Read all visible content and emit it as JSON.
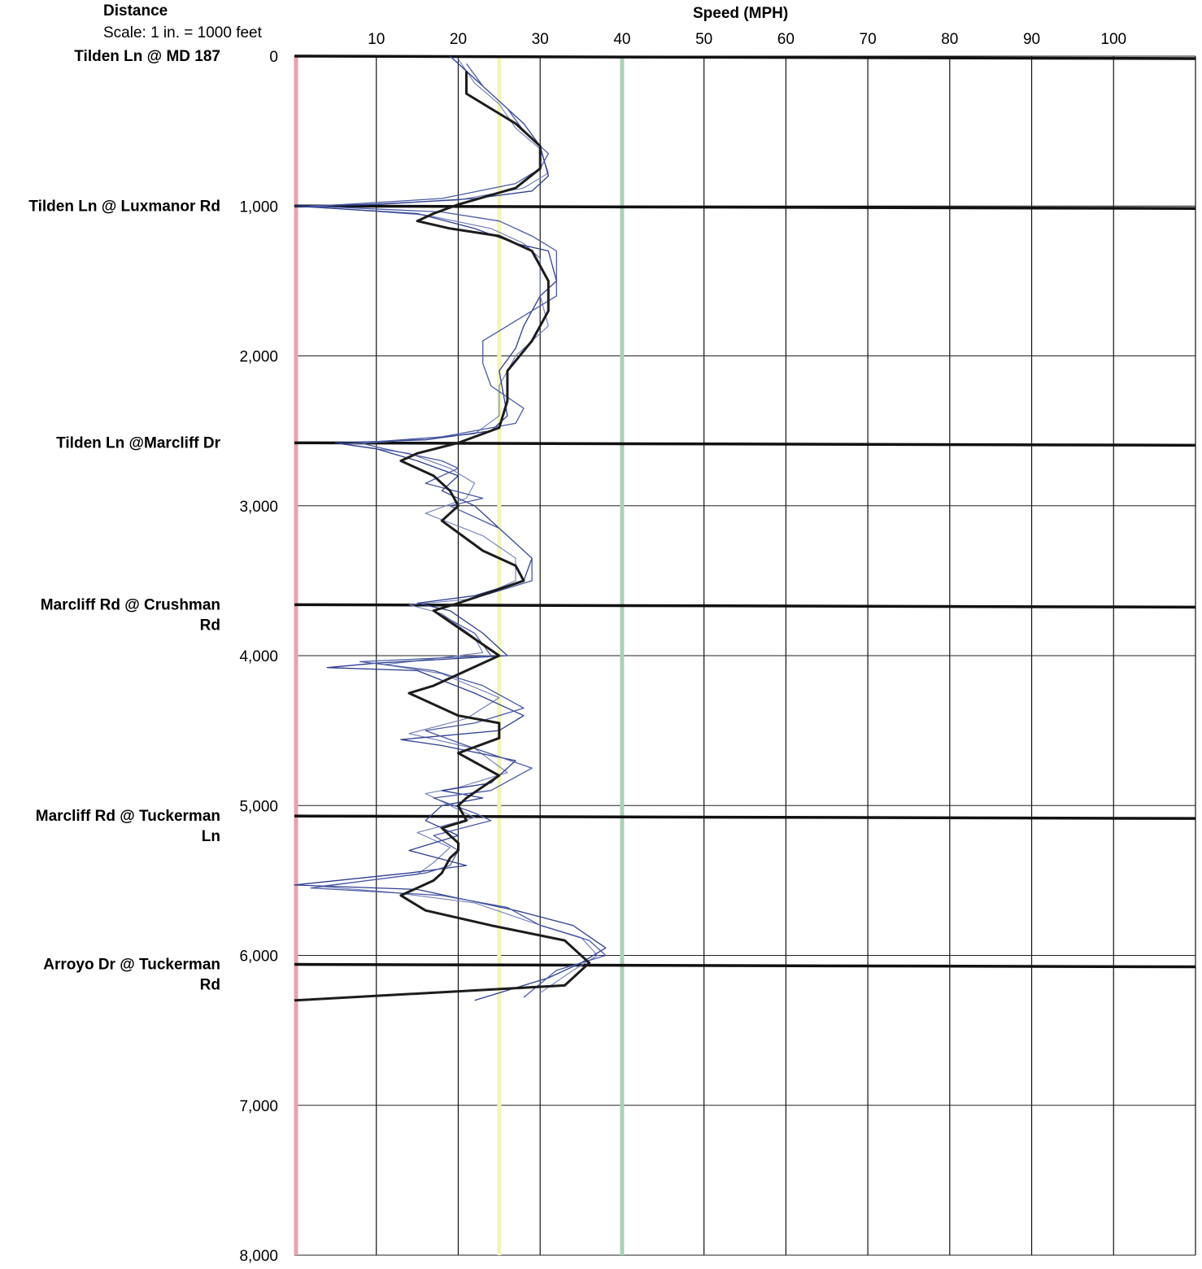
{
  "header": {
    "distance_title": "Distance",
    "scale_note": "Scale: 1 in. = 1000 feet",
    "speed_title": "Speed (MPH)"
  },
  "chart_data": {
    "type": "line",
    "orientation": "vertical",
    "xlabel": "Speed (MPH)",
    "ylabel": "Distance",
    "xlim": [
      0,
      110
    ],
    "ylim": [
      0,
      8000
    ],
    "x_ticks": [
      "10",
      "20",
      "30",
      "40",
      "50",
      "60",
      "70",
      "80",
      "90",
      "100"
    ],
    "y_ticks": [
      "0",
      "1,000",
      "2,000",
      "3,000",
      "4,000",
      "5,000",
      "6,000",
      "7,000",
      "8,000"
    ],
    "reference_lines": [
      {
        "speed": 0,
        "color": "#e8a3ae"
      },
      {
        "speed": 25,
        "color": "#f2f4b8"
      },
      {
        "speed": 40,
        "color": "#a9d2b5"
      }
    ],
    "locations": [
      {
        "name": [
          "Tilden Ln @ MD 187"
        ],
        "distance": 0
      },
      {
        "name": [
          "Tilden Ln @ Luxmanor Rd"
        ],
        "distance": 1000
      },
      {
        "name": [
          "Tilden Ln @Marcliff Dr"
        ],
        "distance": 2580
      },
      {
        "name": [
          "Marcliff Rd @ Crushman",
          "Rd"
        ],
        "distance": 3660
      },
      {
        "name": [
          "Marcliff Rd @ Tuckerman",
          "Ln"
        ],
        "distance": 5070
      },
      {
        "name": [
          "Arroyo Dr @ Tuckerman",
          "Rd"
        ],
        "distance": 6060
      }
    ],
    "series": [
      {
        "color": "#1c1c1c",
        "width": 3,
        "points": [
          [
            21,
            100
          ],
          [
            21,
            250
          ],
          [
            24,
            350
          ],
          [
            27,
            450
          ],
          [
            29,
            550
          ],
          [
            30,
            600
          ],
          [
            30,
            750
          ],
          [
            27,
            880
          ],
          [
            20,
            990
          ],
          [
            17,
            1050
          ],
          [
            15,
            1100
          ],
          [
            19,
            1150
          ],
          [
            25,
            1200
          ],
          [
            29,
            1300
          ],
          [
            31,
            1500
          ],
          [
            31,
            1700
          ],
          [
            29,
            1900
          ],
          [
            26,
            2100
          ],
          [
            26,
            2300
          ],
          [
            25,
            2480
          ],
          [
            20,
            2580
          ],
          [
            15,
            2650
          ],
          [
            13,
            2700
          ],
          [
            17,
            2800
          ],
          [
            19,
            2900
          ],
          [
            20,
            3000
          ],
          [
            18,
            3100
          ],
          [
            23,
            3300
          ],
          [
            27,
            3400
          ],
          [
            28,
            3500
          ],
          [
            20,
            3650
          ],
          [
            17,
            3700
          ],
          [
            21,
            3850
          ],
          [
            25,
            4000
          ],
          [
            17,
            4200
          ],
          [
            14,
            4250
          ],
          [
            20,
            4400
          ],
          [
            25,
            4450
          ],
          [
            25,
            4550
          ],
          [
            20,
            4650
          ],
          [
            25,
            4800
          ],
          [
            21,
            4950
          ],
          [
            20,
            5000
          ],
          [
            21,
            5100
          ],
          [
            18,
            5150
          ],
          [
            20,
            5250
          ],
          [
            20,
            5300
          ],
          [
            19,
            5350
          ],
          [
            18,
            5450
          ],
          [
            17,
            5500
          ],
          [
            13,
            5600
          ],
          [
            16,
            5700
          ],
          [
            24,
            5800
          ],
          [
            33,
            5900
          ],
          [
            36,
            6050
          ],
          [
            33,
            6200
          ],
          [
            0,
            6300
          ]
        ]
      },
      {
        "color": "#2e3f8f",
        "width": 1.3,
        "points": [
          [
            19,
            0
          ],
          [
            22,
            150
          ],
          [
            25,
            300
          ],
          [
            28,
            450
          ],
          [
            30,
            600
          ],
          [
            31,
            800
          ],
          [
            29,
            900
          ],
          [
            22,
            950
          ],
          [
            10,
            990
          ],
          [
            0,
            1000
          ],
          [
            15,
            1050
          ],
          [
            22,
            1150
          ],
          [
            27,
            1250
          ],
          [
            31,
            1300
          ],
          [
            32,
            1500
          ],
          [
            30,
            1600
          ],
          [
            28,
            1800
          ],
          [
            27,
            1950
          ],
          [
            25,
            2100
          ],
          [
            26,
            2400
          ],
          [
            24,
            2500
          ],
          [
            16,
            2560
          ],
          [
            5,
            2580
          ],
          [
            10,
            2620
          ],
          [
            15,
            2700
          ],
          [
            20,
            2800
          ],
          [
            18,
            2900
          ],
          [
            22,
            3000
          ],
          [
            26,
            3200
          ],
          [
            29,
            3350
          ],
          [
            28,
            3500
          ],
          [
            22,
            3600
          ],
          [
            15,
            3650
          ],
          [
            19,
            3700
          ],
          [
            23,
            3850
          ],
          [
            26,
            4000
          ],
          [
            10,
            4050
          ],
          [
            4,
            4080
          ],
          [
            15,
            4100
          ],
          [
            22,
            4250
          ],
          [
            28,
            4400
          ],
          [
            25,
            4500
          ],
          [
            13,
            4560
          ],
          [
            18,
            4600
          ],
          [
            27,
            4700
          ],
          [
            24,
            4850
          ],
          [
            18,
            4900
          ],
          [
            23,
            4950
          ],
          [
            18,
            5000
          ],
          [
            16,
            5100
          ],
          [
            20,
            5200
          ],
          [
            14,
            5300
          ],
          [
            21,
            5400
          ],
          [
            14,
            5450
          ],
          [
            0,
            5530
          ],
          [
            15,
            5560
          ],
          [
            27,
            5700
          ],
          [
            34,
            5800
          ],
          [
            38,
            5950
          ],
          [
            35,
            6050
          ],
          [
            31,
            6150
          ],
          [
            22,
            6300
          ]
        ]
      },
      {
        "color": "#4a5aa5",
        "width": 1.3,
        "points": [
          [
            21,
            50
          ],
          [
            23,
            200
          ],
          [
            26,
            350
          ],
          [
            28,
            500
          ],
          [
            31,
            650
          ],
          [
            30,
            750
          ],
          [
            27,
            850
          ],
          [
            18,
            950
          ],
          [
            6,
            990
          ],
          [
            2,
            1000
          ],
          [
            18,
            1040
          ],
          [
            25,
            1100
          ],
          [
            29,
            1200
          ],
          [
            32,
            1300
          ],
          [
            32,
            1600
          ],
          [
            29,
            1700
          ],
          [
            26,
            1800
          ],
          [
            23,
            1900
          ],
          [
            23,
            2050
          ],
          [
            24,
            2200
          ],
          [
            28,
            2350
          ],
          [
            27,
            2450
          ],
          [
            18,
            2540
          ],
          [
            8,
            2580
          ],
          [
            11,
            2620
          ],
          [
            18,
            2700
          ],
          [
            20,
            2750
          ],
          [
            16,
            2850
          ],
          [
            23,
            2950
          ],
          [
            19,
            3000
          ],
          [
            25,
            3150
          ],
          [
            29,
            3350
          ],
          [
            29,
            3500
          ],
          [
            20,
            3650
          ],
          [
            17,
            3700
          ],
          [
            22,
            3850
          ],
          [
            24,
            4000
          ],
          [
            8,
            4040
          ],
          [
            17,
            4100
          ],
          [
            23,
            4200
          ],
          [
            28,
            4350
          ],
          [
            22,
            4450
          ],
          [
            16,
            4500
          ],
          [
            21,
            4600
          ],
          [
            29,
            4750
          ],
          [
            24,
            4900
          ],
          [
            17,
            4950
          ],
          [
            22,
            5050
          ],
          [
            24,
            5100
          ],
          [
            17,
            5200
          ],
          [
            20,
            5300
          ],
          [
            19,
            5400
          ],
          [
            16,
            5450
          ],
          [
            2,
            5550
          ],
          [
            18,
            5600
          ],
          [
            26,
            5680
          ],
          [
            30,
            5800
          ],
          [
            36,
            5900
          ],
          [
            38,
            6000
          ],
          [
            32,
            6100
          ],
          [
            28,
            6280
          ]
        ]
      },
      {
        "color": "#6f7cb8",
        "width": 1.1,
        "points": [
          [
            20,
            20
          ],
          [
            22,
            180
          ],
          [
            25,
            320
          ],
          [
            27,
            480
          ],
          [
            30,
            620
          ],
          [
            31,
            780
          ],
          [
            28,
            880
          ],
          [
            20,
            960
          ],
          [
            8,
            990
          ],
          [
            1,
            1000
          ],
          [
            16,
            1060
          ],
          [
            24,
            1150
          ],
          [
            28,
            1250
          ],
          [
            30,
            1350
          ],
          [
            30,
            1600
          ],
          [
            31,
            1800
          ],
          [
            29,
            1900
          ],
          [
            27,
            2000
          ],
          [
            25,
            2200
          ],
          [
            25,
            2400
          ],
          [
            22,
            2520
          ],
          [
            12,
            2570
          ],
          [
            6,
            2590
          ],
          [
            14,
            2650
          ],
          [
            19,
            2750
          ],
          [
            22,
            2850
          ],
          [
            21,
            2950
          ],
          [
            16,
            3050
          ],
          [
            23,
            3200
          ],
          [
            27,
            3350
          ],
          [
            27,
            3500
          ],
          [
            22,
            3620
          ],
          [
            14,
            3660
          ],
          [
            18,
            3720
          ],
          [
            22,
            3880
          ],
          [
            23,
            3980
          ],
          [
            11,
            4060
          ],
          [
            18,
            4120
          ],
          [
            25,
            4280
          ],
          [
            21,
            4420
          ],
          [
            14,
            4520
          ],
          [
            22,
            4620
          ],
          [
            26,
            4780
          ],
          [
            20,
            4880
          ],
          [
            16,
            4920
          ],
          [
            19,
            5000
          ],
          [
            22,
            5080
          ],
          [
            15,
            5180
          ],
          [
            19,
            5280
          ],
          [
            17,
            5380
          ],
          [
            15,
            5460
          ],
          [
            3,
            5540
          ],
          [
            12,
            5580
          ],
          [
            22,
            5650
          ],
          [
            29,
            5780
          ],
          [
            35,
            5880
          ],
          [
            37,
            6000
          ],
          [
            34,
            6100
          ],
          [
            30,
            6250
          ]
        ]
      }
    ]
  }
}
